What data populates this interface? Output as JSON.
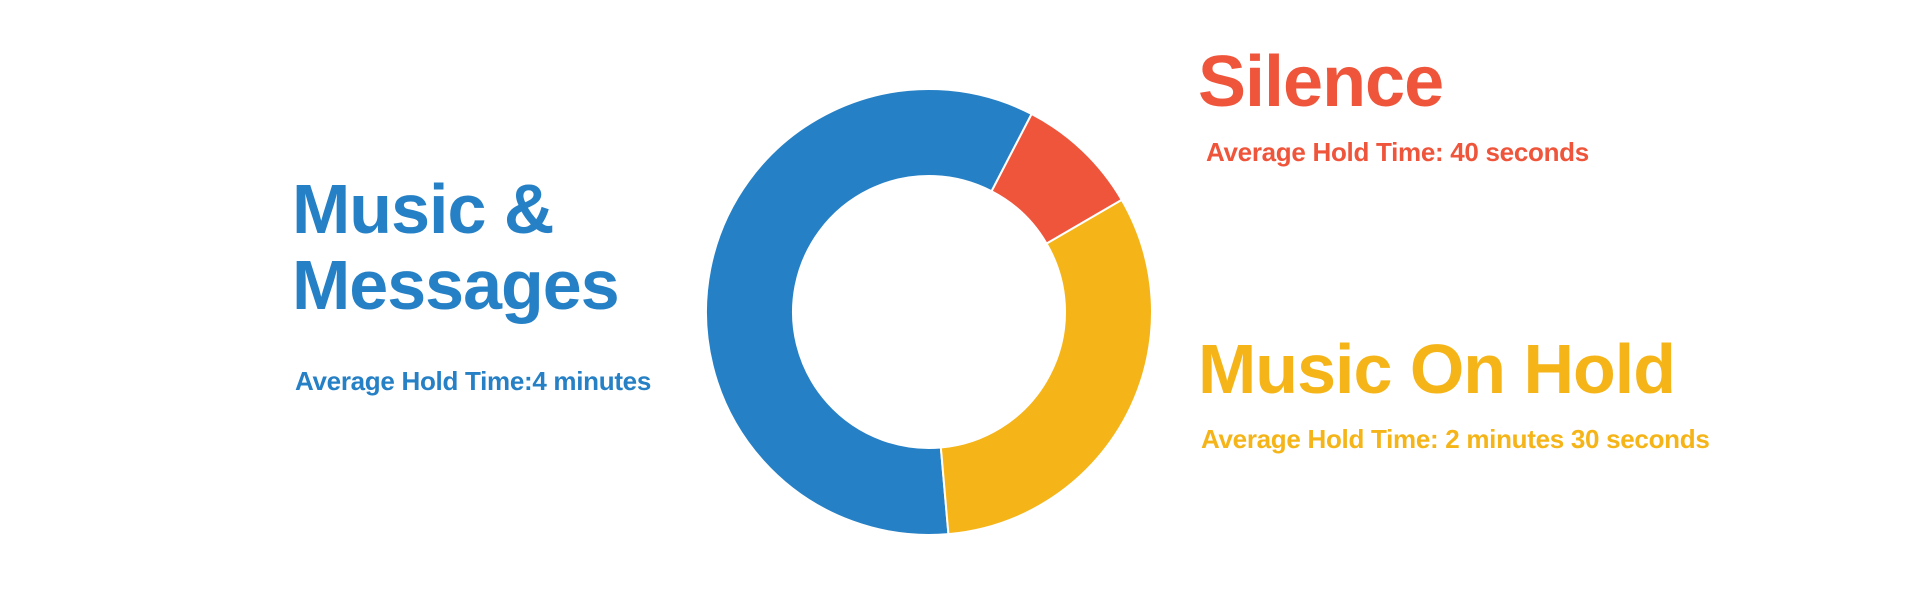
{
  "chart_data": {
    "type": "donut",
    "categories": [
      "Music & Messages",
      "Silence",
      "Music On Hold"
    ],
    "descriptions": [
      "Average Hold Time:4 minutes",
      "Average Hold Time: 40 seconds",
      "Average Hold Time: 2 minutes 30 seconds"
    ],
    "values": [
      59,
      9,
      32
    ],
    "colors": [
      "#2680c5",
      "#ef553b",
      "#f5b418"
    ]
  }
}
